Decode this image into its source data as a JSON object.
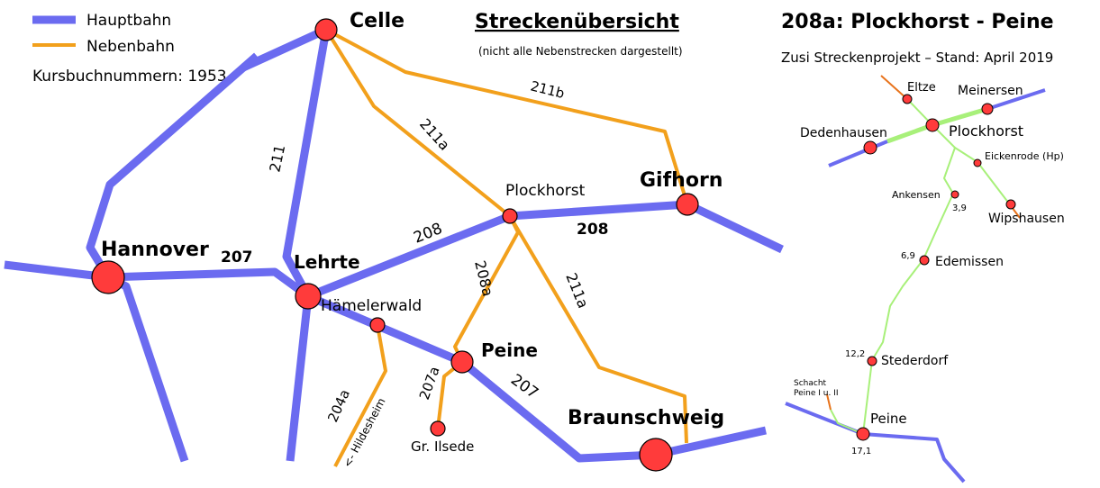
{
  "legend": {
    "main_line": "Hauptbahn",
    "branch_line": "Nebenbahn",
    "timetable_note": "Kursbuchnummern: 1953"
  },
  "overview": {
    "title": "Streckenübersicht",
    "subtitle": "(nicht alle Nebenstrecken dargestellt)"
  },
  "detail": {
    "title": "208a: Plockhorst - Peine",
    "subtitle": "Zusi Streckenprojekt – Stand: April 2019"
  },
  "colors": {
    "main_line": "#6b6bf0",
    "branch_line": "#f2a01c",
    "station_fill": "#ff3b3b",
    "project_line": "#a8f07a",
    "project_main": "#a8f07a",
    "project_branch_stub": "#e8731c"
  },
  "cities": {
    "celle": "Celle",
    "hannover": "Hannover",
    "lehrte": "Lehrte",
    "haemelerwald": "Hämelerwald",
    "plockhorst": "Plockhorst",
    "gifhorn": "Gifhorn",
    "peine": "Peine",
    "gr_ilsede": "Gr. Ilsede",
    "braunschweig": "Braunschweig",
    "hildesheim_arrow": "<- Hildesheim"
  },
  "line_numbers": {
    "l207_hannover_lehrte": "207",
    "l207_peine_braunschweig": "207",
    "l211": "211",
    "l211a_celle": "211a",
    "l211a_plockhorst": "211a",
    "l211b": "211b",
    "l208_lehrte": "208",
    "l208_gifhorn": "208",
    "l208a": "208a",
    "l207a": "207a",
    "l204a": "204a"
  },
  "project_stations": {
    "eltze": "Eltze",
    "meinersen": "Meinersen",
    "dedenhausen": "Dedenhausen",
    "plockhorst": "Plockhorst",
    "eickenrode": "Eickenrode (Hp)",
    "ankensen": "Ankensen",
    "wipshausen": "Wipshausen",
    "edemissen": "Edemissen",
    "stederdorf": "Stederdorf",
    "schacht": "Schacht\nPeine I u. II",
    "schacht_line1": "Schacht",
    "schacht_line2": "Peine I u. II",
    "peine": "Peine"
  },
  "project_km": {
    "ankensen": "3,9",
    "edemissen": "6,9",
    "stederdorf": "12,2",
    "peine": "17,1"
  }
}
